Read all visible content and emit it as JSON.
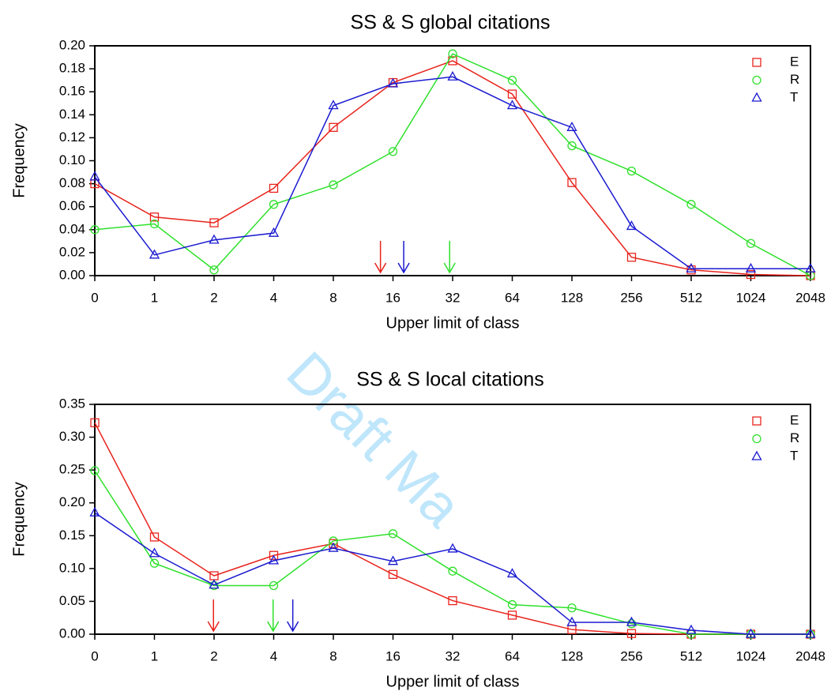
{
  "watermark": "Draft Ma",
  "chart_data": [
    {
      "type": "line",
      "title": "SS & S global citations",
      "xlabel": "Upper limit of class",
      "ylabel": "Frequency",
      "categories": [
        "0",
        "1",
        "2",
        "4",
        "8",
        "16",
        "32",
        "64",
        "128",
        "256",
        "512",
        "1024",
        "2048"
      ],
      "ylim": [
        0,
        0.2
      ],
      "yticks": [
        {
          "value": 0,
          "label": "0.00"
        },
        {
          "value": 0.02,
          "label": "0.02"
        },
        {
          "value": 0.04,
          "label": "0.04"
        },
        {
          "value": 0.06,
          "label": "0.06"
        },
        {
          "value": 0.08,
          "label": "0.08"
        },
        {
          "value": 0.1,
          "label": "0.10"
        },
        {
          "value": 0.12,
          "label": "0.12"
        },
        {
          "value": 0.14,
          "label": "0.14"
        },
        {
          "value": 0.16,
          "label": "0.16"
        },
        {
          "value": 0.18,
          "label": "0.18"
        },
        {
          "value": 0.2,
          "label": "0.20"
        }
      ],
      "legend": "upper right",
      "series": [
        {
          "name": "E",
          "color": "#e8231c",
          "marker": "square",
          "values": [
            0.08,
            0.051,
            0.046,
            0.076,
            0.129,
            0.168,
            0.187,
            0.158,
            0.081,
            0.016,
            0.005,
            0.001,
            0.0
          ]
        },
        {
          "name": "R",
          "color": "#2ee02b",
          "marker": "circle",
          "values": [
            0.04,
            0.045,
            0.005,
            0.062,
            0.079,
            0.108,
            0.193,
            0.17,
            0.113,
            0.091,
            0.062,
            0.028,
            0.0
          ]
        },
        {
          "name": "T",
          "color": "#1a1ad0",
          "marker": "triangle",
          "values": [
            0.086,
            0.018,
            0.031,
            0.037,
            0.148,
            0.167,
            0.173,
            0.148,
            0.129,
            0.043,
            0.006,
            0.006,
            0.006
          ]
        }
      ],
      "arrows": [
        {
          "color": "#e8231c",
          "x": 4.79
        },
        {
          "color": "#1a1ad0",
          "x": 5.18
        },
        {
          "color": "#2ee02b",
          "x": 5.95
        }
      ]
    },
    {
      "type": "line",
      "title": "SS & S local citations",
      "xlabel": "Upper limit of class",
      "ylabel": "Frequency",
      "categories": [
        "0",
        "1",
        "2",
        "4",
        "8",
        "16",
        "32",
        "64",
        "128",
        "256",
        "512",
        "1024",
        "2048"
      ],
      "ylim": [
        0,
        0.35
      ],
      "yticks": [
        {
          "value": 0,
          "label": "0.00"
        },
        {
          "value": 0.05,
          "label": "0.05"
        },
        {
          "value": 0.1,
          "label": "0.10"
        },
        {
          "value": 0.15,
          "label": "0.15"
        },
        {
          "value": 0.2,
          "label": "0.20"
        },
        {
          "value": 0.25,
          "label": "0.25"
        },
        {
          "value": 0.3,
          "label": "0.30"
        },
        {
          "value": 0.35,
          "label": "0.35"
        }
      ],
      "legend": "upper right",
      "series": [
        {
          "name": "E",
          "color": "#e8231c",
          "marker": "square",
          "values": [
            0.322,
            0.148,
            0.089,
            0.12,
            0.138,
            0.091,
            0.051,
            0.029,
            0.007,
            0.001,
            0.0,
            0.0,
            0.0
          ]
        },
        {
          "name": "R",
          "color": "#2ee02b",
          "marker": "circle",
          "values": [
            0.249,
            0.108,
            0.074,
            0.074,
            0.142,
            0.153,
            0.096,
            0.045,
            0.04,
            0.016,
            0.0,
            0.0,
            0.0
          ]
        },
        {
          "name": "T",
          "color": "#1a1ad0",
          "marker": "triangle",
          "values": [
            0.185,
            0.123,
            0.075,
            0.112,
            0.131,
            0.111,
            0.13,
            0.092,
            0.018,
            0.018,
            0.006,
            0.0,
            0.0
          ]
        }
      ],
      "arrows": [
        {
          "color": "#e8231c",
          "x": 1.99
        },
        {
          "color": "#2ee02b",
          "x": 2.99
        },
        {
          "color": "#1a1ad0",
          "x": 3.32
        }
      ]
    }
  ]
}
